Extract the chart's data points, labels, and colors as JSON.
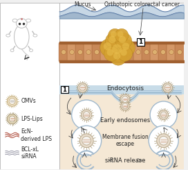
{
  "bg_color": "#f0f0f0",
  "left_panel_bg": "#ffffff",
  "right_top_bg": "#ffffff",
  "right_bottom_bg": "#f5e8d5",
  "mucus_color_dark": "#6888b0",
  "mucus_color_light": "#a0b8d0",
  "tumor_color": "#d4a030",
  "tumor_highlight": "#e8c050",
  "cell_color1": "#c89060",
  "cell_color2": "#d4a070",
  "endosome_edge": "#a0b8cc",
  "vesicle_outer": "#c0b090",
  "vesicle_inner_bg": "#e8dcc8",
  "vesicle_spike": "#b0a080",
  "membrane_color": "#a0b8cc",
  "arrow_color": "#444444",
  "text_color": "#222222",
  "border_color": "#aaaaaa",
  "c_shape_color": "#a0b8cc",
  "bottom_strip_color": "#d0e4ef",
  "title_mucus": "Mucus",
  "title_cancer": "Orthotopic colorectal cancer",
  "lbl_endocytosis": "Endocytosis",
  "lbl_early": "Early endosomes",
  "lbl_fusion": "Membrane fusion\nescape",
  "lbl_sirna": "siRNA release",
  "lbl_omvs": "OMVs",
  "lbl_lips": "LPS-Lips",
  "lbl_ecn": "EcN-\nderived LPS",
  "lbl_bcl": "BCL-xL\nsiRNA",
  "num1": "1"
}
